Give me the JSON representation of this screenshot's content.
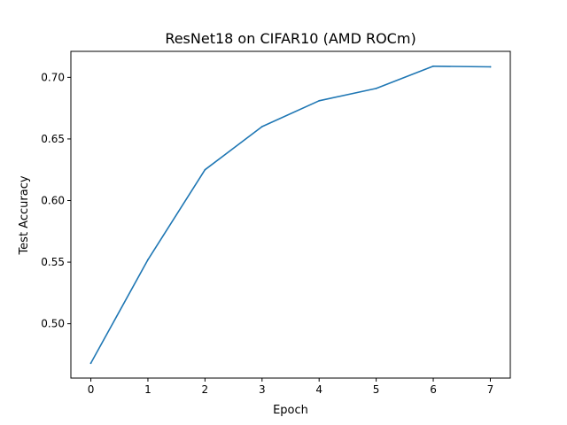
{
  "chart_data": {
    "type": "line",
    "title": "ResNet18 on CIFAR10 (AMD ROCm)",
    "xlabel": "Epoch",
    "ylabel": "Test Accuracy",
    "x": [
      0,
      1,
      2,
      3,
      4,
      5,
      6,
      7
    ],
    "series": [
      {
        "values": [
          0.468,
          0.552,
          0.625,
          0.66,
          0.681,
          0.691,
          0.709,
          0.7085
        ]
      }
    ],
    "x_ticks": [
      "0",
      "1",
      "2",
      "3",
      "4",
      "5",
      "6",
      "7"
    ],
    "y_ticks": [
      "0.50",
      "0.55",
      "0.60",
      "0.65",
      "0.70"
    ],
    "xlim": [
      -0.35,
      7.35
    ],
    "ylim": [
      0.4559,
      0.7211
    ],
    "grid": false,
    "line_color": "#1f77b4"
  }
}
